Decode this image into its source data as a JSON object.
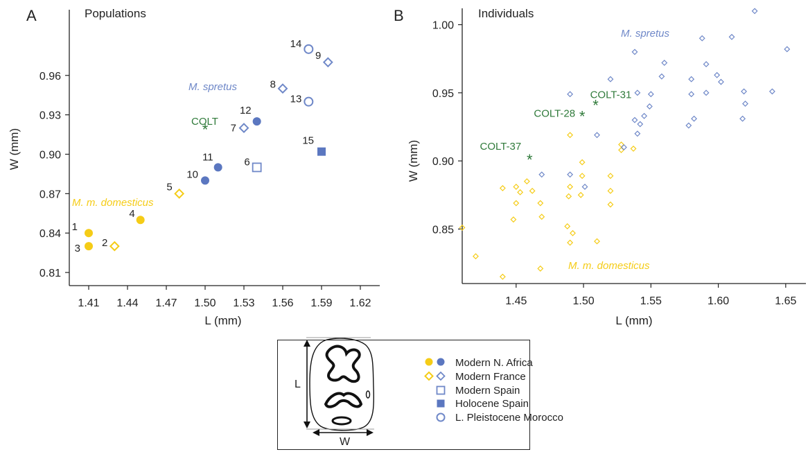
{
  "colors": {
    "domesticus": "#f5cc17",
    "spretus": "#5b77c0",
    "spretus_open": "#6f88c8",
    "colt": "#2f7a3a",
    "axis": "#222222"
  },
  "panel_a": {
    "letter": "A",
    "title": "Populations",
    "xlabel": "L (mm)",
    "ylabel": "W (mm)",
    "species_labels": {
      "spretus": "M. spretus",
      "domesticus": "M. m. domesticus"
    },
    "colt_label": "COLT"
  },
  "panel_b": {
    "letter": "B",
    "title": "Individuals",
    "xlabel": "L (mm)",
    "ylabel": "W (mm)",
    "species_labels": {
      "spretus": "M. spretus",
      "domesticus": "M. m. domesticus"
    }
  },
  "legend": {
    "items": [
      {
        "label": "Modern N. Africa",
        "icon": "filled-circle"
      },
      {
        "label": "Modern France",
        "icon": "open-diamond"
      },
      {
        "label": "Modern Spain",
        "icon": "open-square"
      },
      {
        "label": "Holocene Spain",
        "icon": "filled-square"
      },
      {
        "label": "L. Pleistocene Morocco",
        "icon": "open-circle"
      }
    ],
    "tooth_dimension_labels": {
      "length": "L",
      "width": "W"
    }
  },
  "chart_data": [
    {
      "panel": "A",
      "type": "scatter",
      "title": "Populations",
      "xlabel": "L (mm)",
      "ylabel": "W (mm)",
      "xlim": [
        1.395,
        1.635
      ],
      "ylim": [
        0.8,
        1.01
      ],
      "xticks": [
        "1.41",
        "1.44",
        "1.47",
        "1.50",
        "1.53",
        "1.56",
        "1.59",
        "1.62"
      ],
      "yticks": [
        "0.81",
        "0.84",
        "0.87",
        "0.90",
        "0.93",
        "0.96"
      ],
      "series": [
        {
          "name": "M. m. domesticus",
          "points": [
            {
              "label": "1",
              "x": 1.41,
              "y": 0.84,
              "marker": "filled-circle"
            },
            {
              "label": "3",
              "x": 1.41,
              "y": 0.83,
              "marker": "filled-circle"
            },
            {
              "label": "2",
              "x": 1.43,
              "y": 0.83,
              "marker": "open-diamond"
            },
            {
              "label": "4",
              "x": 1.45,
              "y": 0.85,
              "marker": "filled-circle"
            },
            {
              "label": "5",
              "x": 1.48,
              "y": 0.87,
              "marker": "open-diamond"
            }
          ]
        },
        {
          "name": "M. spretus",
          "points": [
            {
              "label": "10",
              "x": 1.5,
              "y": 0.88,
              "marker": "filled-circle"
            },
            {
              "label": "11",
              "x": 1.51,
              "y": 0.89,
              "marker": "filled-circle"
            },
            {
              "label": "6",
              "x": 1.54,
              "y": 0.89,
              "marker": "open-square"
            },
            {
              "label": "7",
              "x": 1.53,
              "y": 0.92,
              "marker": "open-diamond"
            },
            {
              "label": "12",
              "x": 1.54,
              "y": 0.925,
              "marker": "filled-circle"
            },
            {
              "label": "8",
              "x": 1.56,
              "y": 0.95,
              "marker": "open-diamond"
            },
            {
              "label": "13",
              "x": 1.58,
              "y": 0.94,
              "marker": "open-circle"
            },
            {
              "label": "14",
              "x": 1.58,
              "y": 0.98,
              "marker": "open-circle"
            },
            {
              "label": "9",
              "x": 1.595,
              "y": 0.97,
              "marker": "open-diamond"
            },
            {
              "label": "15",
              "x": 1.59,
              "y": 0.902,
              "marker": "filled-square"
            }
          ]
        },
        {
          "name": "COLT",
          "points": [
            {
              "label": "COLT",
              "x": 1.5,
              "y": 0.919,
              "marker": "asterisk"
            }
          ]
        }
      ]
    },
    {
      "panel": "B",
      "type": "scatter",
      "title": "Individuals",
      "xlabel": "L (mm)",
      "ylabel": "W (mm)",
      "xlim": [
        1.41,
        1.665
      ],
      "ylim": [
        0.81,
        1.012
      ],
      "xticks": [
        "1.45",
        "1.50",
        "1.55",
        "1.60",
        "1.65"
      ],
      "yticks": [
        "0.85",
        "0.90",
        "0.95",
        "1.00"
      ],
      "series": [
        {
          "name": "M. m. domesticus",
          "marker": "open-diamond",
          "points": [
            [
              1.41,
              0.851
            ],
            [
              1.42,
              0.83
            ],
            [
              1.44,
              0.88
            ],
            [
              1.44,
              0.815
            ],
            [
              1.45,
              0.881
            ],
            [
              1.45,
              0.869
            ],
            [
              1.448,
              0.857
            ],
            [
              1.453,
              0.877
            ],
            [
              1.458,
              0.885
            ],
            [
              1.462,
              0.878
            ],
            [
              1.468,
              0.869
            ],
            [
              1.469,
              0.859
            ],
            [
              1.468,
              0.821
            ],
            [
              1.488,
              0.852
            ],
            [
              1.49,
              0.919
            ],
            [
              1.49,
              0.881
            ],
            [
              1.489,
              0.874
            ],
            [
              1.49,
              0.84
            ],
            [
              1.492,
              0.847
            ],
            [
              1.499,
              0.899
            ],
            [
              1.499,
              0.889
            ],
            [
              1.498,
              0.875
            ],
            [
              1.51,
              0.841
            ],
            [
              1.52,
              0.889
            ],
            [
              1.52,
              0.878
            ],
            [
              1.52,
              0.868
            ],
            [
              1.528,
              0.912
            ],
            [
              1.537,
              0.909
            ],
            [
              1.528,
              0.908
            ]
          ]
        },
        {
          "name": "M. spretus",
          "marker": "open-diamond",
          "points": [
            [
              1.469,
              0.89
            ],
            [
              1.49,
              0.949
            ],
            [
              1.49,
              0.89
            ],
            [
              1.501,
              0.881
            ],
            [
              1.51,
              0.919
            ],
            [
              1.52,
              0.96
            ],
            [
              1.53,
              0.91
            ],
            [
              1.538,
              0.98
            ],
            [
              1.538,
              0.93
            ],
            [
              1.54,
              0.95
            ],
            [
              1.54,
              0.92
            ],
            [
              1.542,
              0.927
            ],
            [
              1.545,
              0.933
            ],
            [
              1.549,
              0.94
            ],
            [
              1.55,
              0.949
            ],
            [
              1.558,
              0.962
            ],
            [
              1.56,
              0.972
            ],
            [
              1.578,
              0.926
            ],
            [
              1.58,
              0.96
            ],
            [
              1.58,
              0.949
            ],
            [
              1.582,
              0.931
            ],
            [
              1.588,
              0.99
            ],
            [
              1.591,
              0.971
            ],
            [
              1.591,
              0.95
            ],
            [
              1.599,
              0.963
            ],
            [
              1.602,
              0.958
            ],
            [
              1.61,
              0.991
            ],
            [
              1.618,
              0.931
            ],
            [
              1.619,
              0.951
            ],
            [
              1.62,
              0.942
            ],
            [
              1.627,
              1.01
            ],
            [
              1.64,
              0.951
            ],
            [
              1.651,
              0.982
            ]
          ]
        },
        {
          "name": "COLT",
          "marker": "asterisk",
          "points": [
            {
              "label": "COLT-31",
              "x": 1.509,
              "y": 0.941
            },
            {
              "label": "COLT-28",
              "x": 1.499,
              "y": 0.933
            },
            {
              "label": "COLT-37",
              "x": 1.46,
              "y": 0.901
            }
          ]
        }
      ]
    }
  ]
}
